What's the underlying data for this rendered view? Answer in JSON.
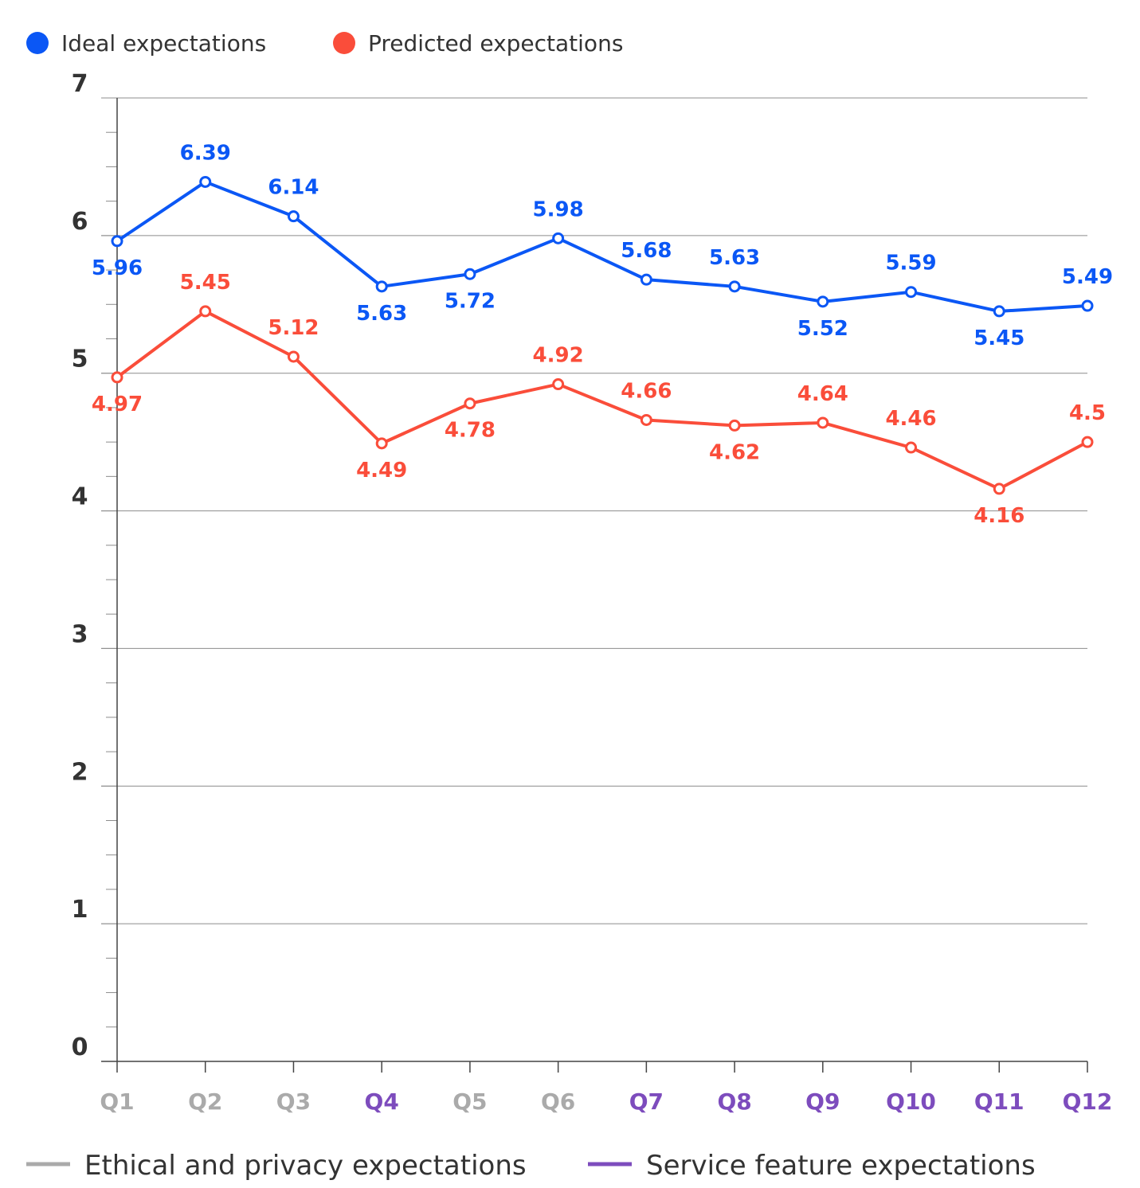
{
  "chart_data": {
    "type": "line",
    "title": "",
    "xlabel": "",
    "ylabel": "",
    "ylim": [
      0,
      7
    ],
    "yticks": [
      "0",
      "1",
      "2",
      "3",
      "4",
      "5",
      "6",
      "7"
    ],
    "grid": true,
    "categories": [
      "Q1",
      "Q2",
      "Q3",
      "Q4",
      "Q5",
      "Q6",
      "Q7",
      "Q8",
      "Q9",
      "Q10",
      "Q11",
      "Q12"
    ],
    "category_groups": [
      "ethical",
      "ethical",
      "ethical",
      "service",
      "ethical",
      "ethical",
      "service",
      "service",
      "service",
      "service",
      "service",
      "service"
    ],
    "series": [
      {
        "name": "Ideal expectations",
        "color": "#0b57f5",
        "values": [
          5.96,
          6.39,
          6.14,
          5.63,
          5.72,
          5.98,
          5.68,
          5.63,
          5.52,
          5.59,
          5.45,
          5.49
        ],
        "labels": [
          "5.96",
          "6.39",
          "6.14",
          "5.63",
          "5.72",
          "5.98",
          "5.68",
          "5.63",
          "5.52",
          "5.59",
          "5.45",
          "5.49"
        ]
      },
      {
        "name": "Predicted expectations",
        "color": "#fa4d3a",
        "values": [
          4.97,
          5.45,
          5.12,
          4.49,
          4.78,
          4.92,
          4.66,
          4.62,
          4.64,
          4.46,
          4.16,
          4.5
        ],
        "labels": [
          "4.97",
          "5.45",
          "5.12",
          "4.49",
          "4.78",
          "4.92",
          "4.66",
          "4.62",
          "4.64",
          "4.46",
          "4.16",
          "4.5"
        ]
      }
    ],
    "legend": {
      "placement": "top-left",
      "items": [
        {
          "label": "Ideal expectations",
          "color": "#0b57f5"
        },
        {
          "label": "Predicted expectations",
          "color": "#fa4d3a"
        }
      ]
    },
    "category_legend": {
      "placement": "bottom",
      "items": [
        {
          "key": "ethical",
          "label": "Ethical and privacy expectations",
          "color": "#aaaaaa"
        },
        {
          "key": "service",
          "label": "Service feature expectations",
          "color": "#7d4cbd"
        }
      ]
    }
  }
}
